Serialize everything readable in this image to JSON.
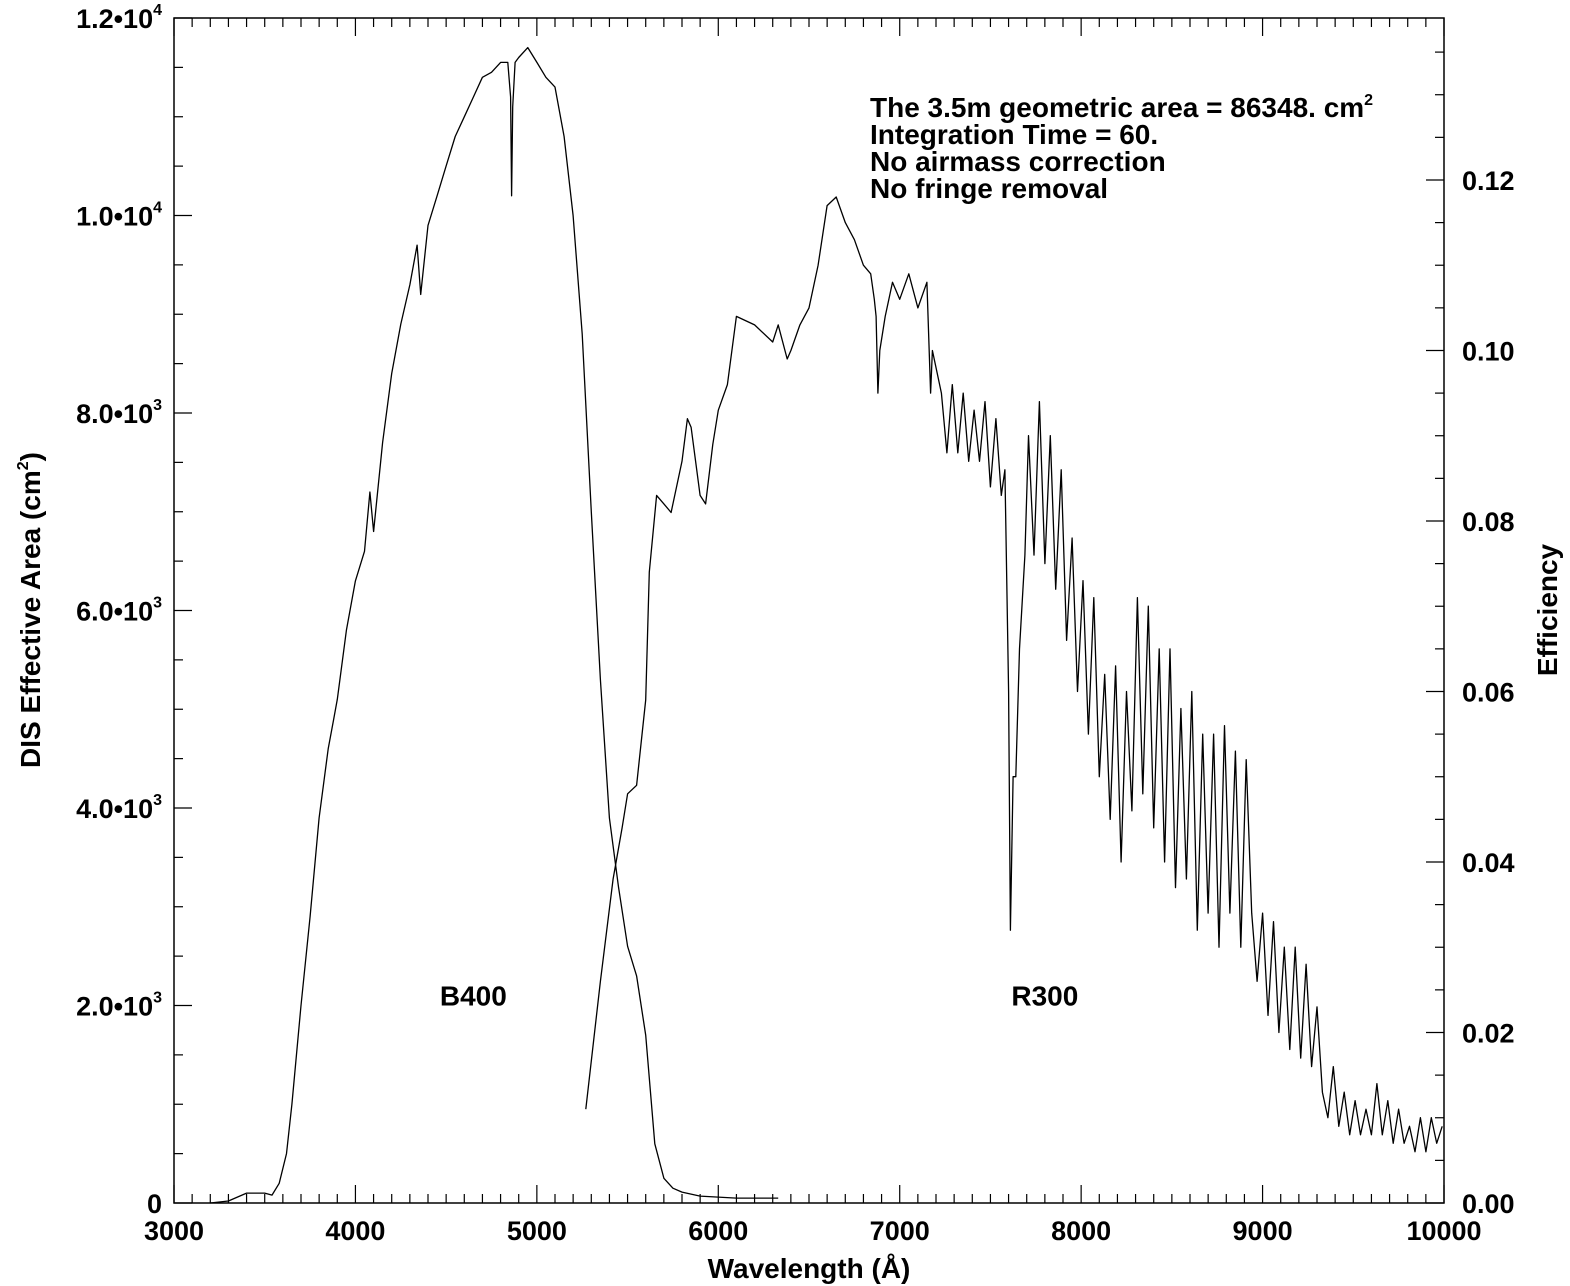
{
  "chart_data": {
    "type": "line",
    "title": "",
    "xlabel": "Wavelength (Å)",
    "ylabel": "DIS Effective Area (cm",
    "ylabel_sup": "2",
    "ylabel_close": ")",
    "y2label": "Efficiency",
    "xlim": [
      3000,
      10000
    ],
    "ylim": [
      0,
      12000
    ],
    "y2lim": [
      0,
      0.139
    ],
    "x_ticks": [
      {
        "value": 3000,
        "label": "3000"
      },
      {
        "value": 4000,
        "label": "4000"
      },
      {
        "value": 5000,
        "label": "5000"
      },
      {
        "value": 6000,
        "label": "6000"
      },
      {
        "value": 7000,
        "label": "7000"
      },
      {
        "value": 8000,
        "label": "8000"
      },
      {
        "value": 9000,
        "label": "9000"
      },
      {
        "value": 10000,
        "label": "10000"
      }
    ],
    "y_ticks": [
      {
        "value": 0,
        "base": "0",
        "exp": ""
      },
      {
        "value": 2000,
        "base": "2.0•10",
        "exp": "3"
      },
      {
        "value": 4000,
        "base": "4.0•10",
        "exp": "3"
      },
      {
        "value": 6000,
        "base": "6.0•10",
        "exp": "3"
      },
      {
        "value": 8000,
        "base": "8.0•10",
        "exp": "3"
      },
      {
        "value": 10000,
        "base": "1.0•10",
        "exp": "4"
      },
      {
        "value": 12000,
        "base": "1.2•10",
        "exp": "4"
      }
    ],
    "y2_ticks": [
      {
        "value": 0.0,
        "label": "0.00"
      },
      {
        "value": 0.02,
        "label": "0.02"
      },
      {
        "value": 0.04,
        "label": "0.04"
      },
      {
        "value": 0.06,
        "label": "0.06"
      },
      {
        "value": 0.08,
        "label": "0.08"
      },
      {
        "value": 0.1,
        "label": "0.10"
      },
      {
        "value": 0.12,
        "label": "0.12"
      }
    ],
    "annotations": [
      {
        "text": "The 3.5m geometric area = 86348. cm",
        "sup": "2"
      },
      {
        "text": "Integration Time =  60.",
        "sup": ""
      },
      {
        "text": "No airmass correction",
        "sup": ""
      },
      {
        "text": "No fringe removal",
        "sup": ""
      }
    ],
    "series": [
      {
        "name": "B400",
        "label_pos": {
          "x": 4650,
          "y": 2100
        },
        "x": [
          3200,
          3300,
          3400,
          3500,
          3540,
          3580,
          3620,
          3650,
          3700,
          3750,
          3800,
          3850,
          3880,
          3900,
          3950,
          3980,
          4000,
          4050,
          4080,
          4100,
          4150,
          4200,
          4250,
          4300,
          4340,
          4360,
          4400,
          4450,
          4500,
          4550,
          4600,
          4650,
          4700,
          4750,
          4800,
          4840,
          4855,
          4861,
          4867,
          4880,
          4900,
          4950,
          5000,
          5050,
          5100,
          5150,
          5200,
          5250,
          5300,
          5350,
          5400,
          5450,
          5500,
          5550,
          5600,
          5650,
          5700,
          5750,
          5800,
          5900,
          6000,
          6100,
          6200,
          6330
        ],
        "values": [
          0,
          20,
          100,
          100,
          80,
          200,
          500,
          1000,
          2000,
          2900,
          3900,
          4600,
          4900,
          5100,
          5800,
          6100,
          6300,
          6600,
          7200,
          6800,
          7700,
          8400,
          8900,
          9300,
          9700,
          9200,
          9900,
          10200,
          10500,
          10800,
          11000,
          11200,
          11400,
          11450,
          11550,
          11550,
          11200,
          10200,
          11100,
          11550,
          11600,
          11700,
          11550,
          11400,
          11300,
          10800,
          10000,
          8800,
          7000,
          5300,
          3900,
          3200,
          2600,
          2300,
          1700,
          600,
          250,
          150,
          110,
          70,
          60,
          50,
          50,
          50
        ]
      },
      {
        "name": "R300",
        "label_pos": {
          "x": 7800,
          "y": 2100
        },
        "x": [
          5270,
          5350,
          5420,
          5470,
          5500,
          5550,
          5600,
          5620,
          5660,
          5700,
          5740,
          5800,
          5830,
          5850,
          5900,
          5930,
          5970,
          6000,
          6050,
          6100,
          6200,
          6300,
          6330,
          6380,
          6400,
          6450,
          6500,
          6550,
          6600,
          6650,
          6700,
          6750,
          6800,
          6840,
          6860,
          6870,
          6880,
          6890,
          6920,
          6960,
          7000,
          7050,
          7100,
          7150,
          7170,
          7180,
          7230,
          7260,
          7290,
          7320,
          7350,
          7380,
          7410,
          7440,
          7470,
          7500,
          7530,
          7560,
          7580,
          7600,
          7610,
          7625,
          7640,
          7660,
          7690,
          7710,
          7740,
          7770,
          7800,
          7830,
          7860,
          7890,
          7920,
          7950,
          7980,
          8010,
          8040,
          8070,
          8100,
          8130,
          8160,
          8190,
          8220,
          8250,
          8280,
          8310,
          8340,
          8370,
          8400,
          8430,
          8460,
          8490,
          8520,
          8550,
          8580,
          8610,
          8640,
          8670,
          8700,
          8730,
          8760,
          8790,
          8820,
          8850,
          8880,
          8910,
          8940,
          8970,
          9000,
          9030,
          9060,
          9090,
          9120,
          9150,
          9180,
          9210,
          9240,
          9270,
          9300,
          9330,
          9360,
          9390,
          9420,
          9450,
          9480,
          9510,
          9540,
          9570,
          9600,
          9630,
          9660,
          9690,
          9720,
          9750,
          9780,
          9810,
          9840,
          9870,
          9900,
          9930,
          9960,
          9990
        ],
        "values": [
          0.011,
          0.026,
          0.038,
          0.044,
          0.048,
          0.049,
          0.059,
          0.074,
          0.083,
          0.082,
          0.081,
          0.087,
          0.092,
          0.091,
          0.083,
          0.082,
          0.089,
          0.093,
          0.096,
          0.104,
          0.103,
          0.101,
          0.103,
          0.099,
          0.1,
          0.103,
          0.105,
          0.11,
          0.117,
          0.118,
          0.115,
          0.113,
          0.11,
          0.109,
          0.106,
          0.104,
          0.095,
          0.1,
          0.104,
          0.108,
          0.106,
          0.109,
          0.105,
          0.108,
          0.095,
          0.1,
          0.095,
          0.088,
          0.096,
          0.088,
          0.095,
          0.087,
          0.093,
          0.087,
          0.094,
          0.084,
          0.092,
          0.083,
          0.086,
          0.06,
          0.032,
          0.05,
          0.05,
          0.065,
          0.076,
          0.09,
          0.076,
          0.094,
          0.075,
          0.09,
          0.072,
          0.086,
          0.066,
          0.078,
          0.06,
          0.073,
          0.055,
          0.071,
          0.05,
          0.062,
          0.045,
          0.063,
          0.04,
          0.06,
          0.046,
          0.071,
          0.048,
          0.07,
          0.044,
          0.065,
          0.04,
          0.065,
          0.037,
          0.058,
          0.038,
          0.06,
          0.032,
          0.055,
          0.034,
          0.055,
          0.03,
          0.056,
          0.034,
          0.053,
          0.03,
          0.052,
          0.034,
          0.026,
          0.034,
          0.022,
          0.033,
          0.02,
          0.03,
          0.018,
          0.03,
          0.017,
          0.028,
          0.016,
          0.023,
          0.013,
          0.01,
          0.016,
          0.009,
          0.013,
          0.008,
          0.012,
          0.008,
          0.011,
          0.008,
          0.014,
          0.008,
          0.012,
          0.007,
          0.011,
          0.007,
          0.009,
          0.006,
          0.01,
          0.006,
          0.01,
          0.007,
          0.009
        ],
        "axis": "y2"
      }
    ],
    "grid": false,
    "legend": "none"
  }
}
